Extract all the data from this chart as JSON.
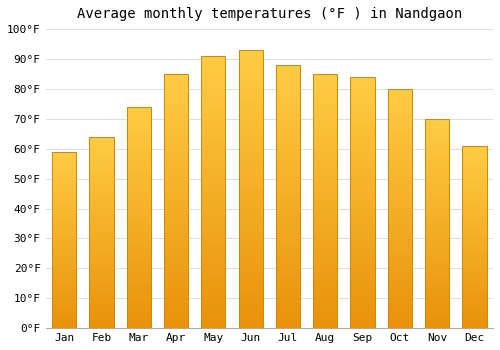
{
  "title": "Average monthly temperatures (°F ) in Nandgaon",
  "months": [
    "Jan",
    "Feb",
    "Mar",
    "Apr",
    "May",
    "Jun",
    "Jul",
    "Aug",
    "Sep",
    "Oct",
    "Nov",
    "Dec"
  ],
  "values": [
    59,
    64,
    74,
    85,
    91,
    93,
    88,
    85,
    84,
    80,
    70,
    61
  ],
  "bar_color_bottom": "#E8920A",
  "bar_color_top": "#FFCC44",
  "bar_edge_color": "#CC8800",
  "ylim": [
    0,
    100
  ],
  "yticks": [
    0,
    10,
    20,
    30,
    40,
    50,
    60,
    70,
    80,
    90,
    100
  ],
  "ytick_labels": [
    "0°F",
    "10°F",
    "20°F",
    "30°F",
    "40°F",
    "50°F",
    "60°F",
    "70°F",
    "80°F",
    "90°F",
    "100°F"
  ],
  "background_color": "#ffffff",
  "grid_color": "#dddddd",
  "title_fontsize": 10,
  "tick_fontsize": 8,
  "bar_width": 0.65
}
